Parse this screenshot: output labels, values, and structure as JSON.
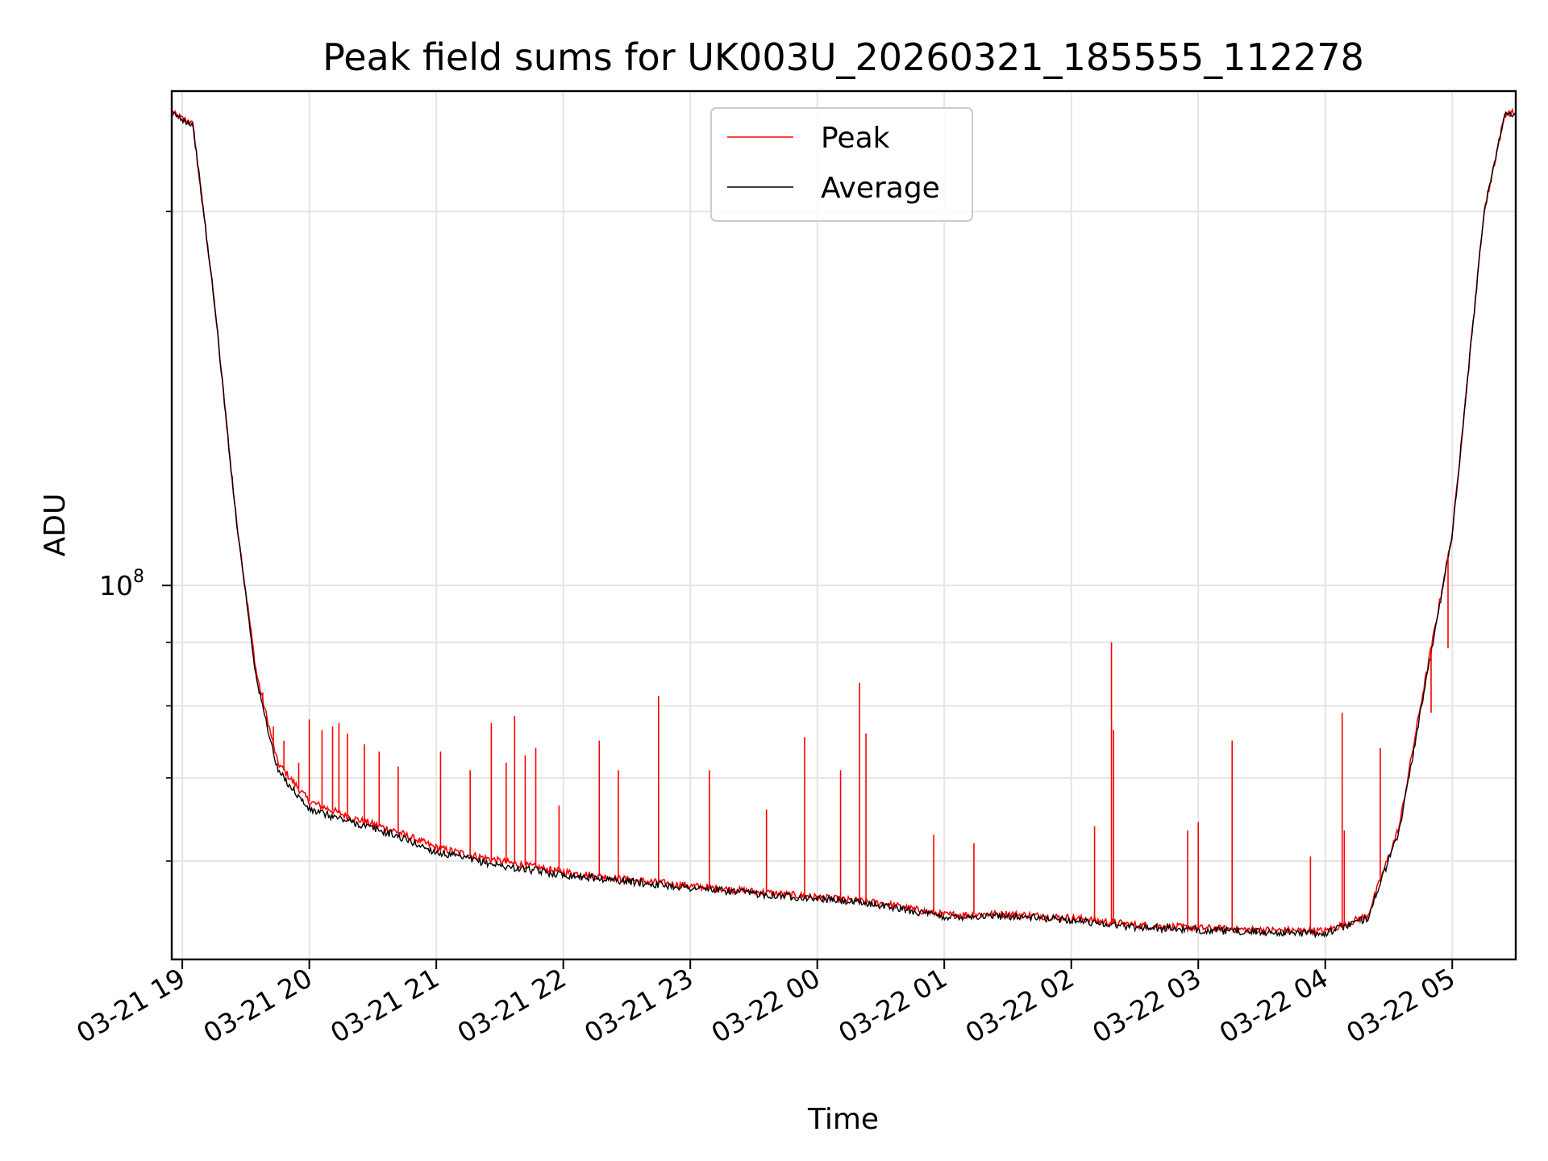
{
  "chart_data": {
    "type": "line",
    "title": "Peak field sums for UK003U_20260321_185555_112278",
    "xlabel": "Time",
    "ylabel": "ADU",
    "y_scale": "log",
    "x_range": [
      "2026-03-21T18:55:00",
      "2026-03-22T05:30:00"
    ],
    "ylim": [
      50000000,
      250000000
    ],
    "x_tick_labels": [
      "03-21 19",
      "03-21 20",
      "03-21 21",
      "03-21 22",
      "03-21 23",
      "03-22 00",
      "03-22 01",
      "03-22 02",
      "03-22 03",
      "03-22 04",
      "03-22 05"
    ],
    "x_ticks": [
      "2026-03-21T19:00:00",
      "2026-03-21T20:00:00",
      "2026-03-21T21:00:00",
      "2026-03-21T22:00:00",
      "2026-03-21T23:00:00",
      "2026-03-22T00:00:00",
      "2026-03-22T01:00:00",
      "2026-03-22T02:00:00",
      "2026-03-22T03:00:00",
      "2026-03-22T04:00:00",
      "2026-03-22T05:00:00"
    ],
    "y_ticks": [
      {
        "value": 100000000,
        "base": "10",
        "exp": "8"
      }
    ],
    "y_minor_ticks": [
      60000000,
      70000000,
      80000000,
      90000000,
      200000000
    ],
    "grid": true,
    "legend_position": "top-center",
    "series": [
      {
        "name": "Peak",
        "color": "#ff0000",
        "x": [
          "2026-03-21T18:55",
          "2026-03-21T19:05",
          "2026-03-21T19:15",
          "2026-03-21T19:25",
          "2026-03-21T19:35",
          "2026-03-21T19:45",
          "2026-03-21T20:00",
          "2026-03-21T20:20",
          "2026-03-21T20:40",
          "2026-03-21T21:00",
          "2026-03-21T21:30",
          "2026-03-21T22:00",
          "2026-03-21T22:30",
          "2026-03-21T23:00",
          "2026-03-21T23:30",
          "2026-03-22T00:00",
          "2026-03-22T00:30",
          "2026-03-22T01:00",
          "2026-03-22T01:30",
          "2026-03-22T02:00",
          "2026-03-22T02:30",
          "2026-03-22T03:00",
          "2026-03-22T03:30",
          "2026-03-22T04:00",
          "2026-03-22T04:20",
          "2026-03-22T04:35",
          "2026-03-22T04:45",
          "2026-03-22T05:00",
          "2026-03-22T05:15",
          "2026-03-22T05:25"
        ],
        "values": [
          240000000,
          235000000,
          170000000,
          115000000,
          85000000,
          72000000,
          67000000,
          65000000,
          63500000,
          61500000,
          60000000,
          58800000,
          58000000,
          57300000,
          56700000,
          56100000,
          55500000,
          54300000,
          54400000,
          54000000,
          53300000,
          53000000,
          52800000,
          52700000,
          54200000,
          64000000,
          80000000,
          110000000,
          200000000,
          240000000
        ]
      },
      {
        "name": "Average",
        "color": "#000000",
        "x": [
          "2026-03-21T18:55",
          "2026-03-21T19:05",
          "2026-03-21T19:15",
          "2026-03-21T19:25",
          "2026-03-21T19:35",
          "2026-03-21T19:45",
          "2026-03-21T20:00",
          "2026-03-21T20:20",
          "2026-03-21T20:40",
          "2026-03-21T21:00",
          "2026-03-21T21:30",
          "2026-03-21T22:00",
          "2026-03-21T22:30",
          "2026-03-21T23:00",
          "2026-03-21T23:30",
          "2026-03-22T00:00",
          "2026-03-22T00:30",
          "2026-03-22T01:00",
          "2026-03-22T01:30",
          "2026-03-22T02:00",
          "2026-03-22T02:30",
          "2026-03-22T03:00",
          "2026-03-22T03:30",
          "2026-03-22T04:00",
          "2026-03-22T04:20",
          "2026-03-22T04:35",
          "2026-03-22T04:45",
          "2026-03-22T05:00",
          "2026-03-22T05:15",
          "2026-03-22T05:25"
        ],
        "values": [
          240000000,
          235000000,
          170000000,
          115000000,
          84000000,
          71000000,
          66000000,
          64500000,
          63000000,
          61000000,
          59500000,
          58500000,
          57800000,
          57100000,
          56500000,
          56000000,
          55300000,
          54100000,
          54200000,
          53800000,
          53100000,
          52800000,
          52600000,
          52500000,
          54000000,
          63500000,
          79000000,
          110000000,
          200000000,
          240000000
        ]
      }
    ],
    "peak_spikes": [
      {
        "x": "2026-03-21T19:38",
        "value": 82000000
      },
      {
        "x": "2026-03-21T19:43",
        "value": 77000000
      },
      {
        "x": "2026-03-21T19:48",
        "value": 75000000
      },
      {
        "x": "2026-03-21T19:55",
        "value": 72000000
      },
      {
        "x": "2026-03-21T20:00",
        "value": 78000000
      },
      {
        "x": "2026-03-21T20:06",
        "value": 76500000
      },
      {
        "x": "2026-03-21T20:11",
        "value": 77000000
      },
      {
        "x": "2026-03-21T20:14",
        "value": 77500000
      },
      {
        "x": "2026-03-21T20:18",
        "value": 76000000
      },
      {
        "x": "2026-03-21T20:26",
        "value": 74500000
      },
      {
        "x": "2026-03-21T20:33",
        "value": 73500000
      },
      {
        "x": "2026-03-21T20:42",
        "value": 71500000
      },
      {
        "x": "2026-03-21T21:02",
        "value": 73500000
      },
      {
        "x": "2026-03-21T21:16",
        "value": 71000000
      },
      {
        "x": "2026-03-21T21:26",
        "value": 77500000
      },
      {
        "x": "2026-03-21T21:33",
        "value": 72000000
      },
      {
        "x": "2026-03-21T21:37",
        "value": 78500000
      },
      {
        "x": "2026-03-21T21:42",
        "value": 73000000
      },
      {
        "x": "2026-03-21T21:47",
        "value": 74000000
      },
      {
        "x": "2026-03-21T21:58",
        "value": 66500000
      },
      {
        "x": "2026-03-21T22:17",
        "value": 75000000
      },
      {
        "x": "2026-03-21T22:26",
        "value": 71000000
      },
      {
        "x": "2026-03-21T22:45",
        "value": 81500000
      },
      {
        "x": "2026-03-21T23:09",
        "value": 71000000
      },
      {
        "x": "2026-03-21T23:36",
        "value": 66000000
      },
      {
        "x": "2026-03-21T23:54",
        "value": 75500000
      },
      {
        "x": "2026-03-22T00:11",
        "value": 71000000
      },
      {
        "x": "2026-03-22T00:20",
        "value": 83500000
      },
      {
        "x": "2026-03-22T00:23",
        "value": 76000000
      },
      {
        "x": "2026-03-22T00:55",
        "value": 63000000
      },
      {
        "x": "2026-03-22T01:14",
        "value": 62000000
      },
      {
        "x": "2026-03-22T02:11",
        "value": 64000000
      },
      {
        "x": "2026-03-22T02:19",
        "value": 90000000
      },
      {
        "x": "2026-03-22T02:20",
        "value": 76500000
      },
      {
        "x": "2026-03-22T02:55",
        "value": 63500000
      },
      {
        "x": "2026-03-22T03:00",
        "value": 64500000
      },
      {
        "x": "2026-03-22T03:16",
        "value": 75000000
      },
      {
        "x": "2026-03-22T03:53",
        "value": 60500000
      },
      {
        "x": "2026-03-22T04:08",
        "value": 79000000
      },
      {
        "x": "2026-03-22T04:09",
        "value": 63500000
      },
      {
        "x": "2026-03-22T04:26",
        "value": 74000000
      },
      {
        "x": "2026-03-22T04:50",
        "value": 79000000
      },
      {
        "x": "2026-03-22T04:58",
        "value": 89000000
      }
    ]
  }
}
